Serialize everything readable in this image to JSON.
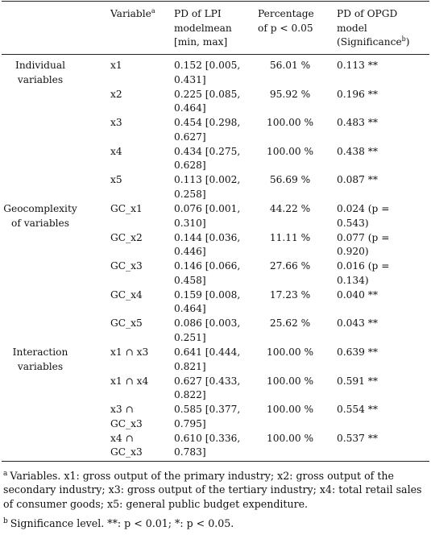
{
  "header": {
    "variable": "Variable",
    "variable_sup": "a",
    "pd_lpi": [
      "PD of LPI",
      "modelmean",
      "[min, max]"
    ],
    "percentage": [
      "Percentage",
      "of p < 0.05"
    ],
    "pd_opgd": [
      "PD of OPGD",
      "model",
      "(Significance"
    ],
    "pd_opgd_sup": "b",
    "pd_opgd_close": ")"
  },
  "groups": [
    {
      "label": [
        "Individual",
        "variables"
      ]
    },
    {
      "label": [
        "Geocomplexity",
        "of variables"
      ]
    },
    {
      "label": [
        "Interaction",
        "variables"
      ]
    }
  ],
  "rows": [
    {
      "variable": [
        "x1"
      ],
      "pd_lpi": [
        "0.152 [0.005,",
        "0.431]"
      ],
      "percentage": "56.01 %",
      "pd_opgd": [
        "0.113 **"
      ]
    },
    {
      "variable": [
        "x2"
      ],
      "pd_lpi": [
        "0.225 [0.085,",
        "0.464]"
      ],
      "percentage": "95.92 %",
      "pd_opgd": [
        "0.196 **"
      ]
    },
    {
      "variable": [
        "x3"
      ],
      "pd_lpi": [
        "0.454 [0.298,",
        "0.627]"
      ],
      "percentage": "100.00 %",
      "pd_opgd": [
        "0.483 **"
      ]
    },
    {
      "variable": [
        "x4"
      ],
      "pd_lpi": [
        "0.434 [0.275,",
        "0.628]"
      ],
      "percentage": "100.00 %",
      "pd_opgd": [
        "0.438 **"
      ]
    },
    {
      "variable": [
        "x5"
      ],
      "pd_lpi": [
        "0.113 [0.002,",
        "0.258]"
      ],
      "percentage": "56.69 %",
      "pd_opgd": [
        "0.087 **"
      ]
    },
    {
      "variable": [
        "GC_x1"
      ],
      "pd_lpi": [
        "0.076 [0.001,",
        "0.310]"
      ],
      "percentage": "44.22 %",
      "pd_opgd": [
        "0.024 (p =",
        "0.543)"
      ]
    },
    {
      "variable": [
        "GC_x2"
      ],
      "pd_lpi": [
        "0.144 [0.036,",
        "0.446]"
      ],
      "percentage": "11.11 %",
      "pd_opgd": [
        "0.077 (p =",
        "0.920)"
      ]
    },
    {
      "variable": [
        "GC_x3"
      ],
      "pd_lpi": [
        "0.146 [0.066,",
        "0.458]"
      ],
      "percentage": "27.66 %",
      "pd_opgd": [
        "0.016 (p =",
        "0.134)"
      ]
    },
    {
      "variable": [
        "GC_x4"
      ],
      "pd_lpi": [
        "0.159 [0.008,",
        "0.464]"
      ],
      "percentage": "17.23 %",
      "pd_opgd": [
        "0.040 **"
      ]
    },
    {
      "variable": [
        "GC_x5"
      ],
      "pd_lpi": [
        "0.086 [0.003,",
        "0.251]"
      ],
      "percentage": "25.62 %",
      "pd_opgd": [
        "0.043 **"
      ]
    },
    {
      "variable": [
        "x1 ∩ x3"
      ],
      "pd_lpi": [
        "0.641 [0.444,",
        "0.821]"
      ],
      "percentage": "100.00 %",
      "pd_opgd": [
        "0.639 **"
      ]
    },
    {
      "variable": [
        "x1 ∩ x4"
      ],
      "pd_lpi": [
        "0.627 [0.433,",
        "0.822]"
      ],
      "percentage": "100.00 %",
      "pd_opgd": [
        "0.591 **"
      ]
    },
    {
      "variable": [
        "x3 ∩",
        "GC_x3"
      ],
      "pd_lpi": [
        "0.585 [0.377,",
        "0.795]"
      ],
      "percentage": "100.00 %",
      "pd_opgd": [
        "0.554 **"
      ]
    },
    {
      "variable": [
        "x4 ∩",
        "GC_x3"
      ],
      "pd_lpi": [
        "0.610 [0.336,",
        "0.783]"
      ],
      "percentage": "100.00 %",
      "pd_opgd": [
        "0.537 **"
      ]
    }
  ],
  "footnotes": [
    {
      "mark": "a",
      "text": "Variables. x1: gross output of the primary industry; x2: gross output of the secondary industry; x3: gross output of the tertiary industry; x4: total retail sales of consumer goods; x5: general public budget expenditure."
    },
    {
      "mark": "b",
      "text": "Significance level. **: p < 0.01; *: p < 0.05."
    }
  ]
}
